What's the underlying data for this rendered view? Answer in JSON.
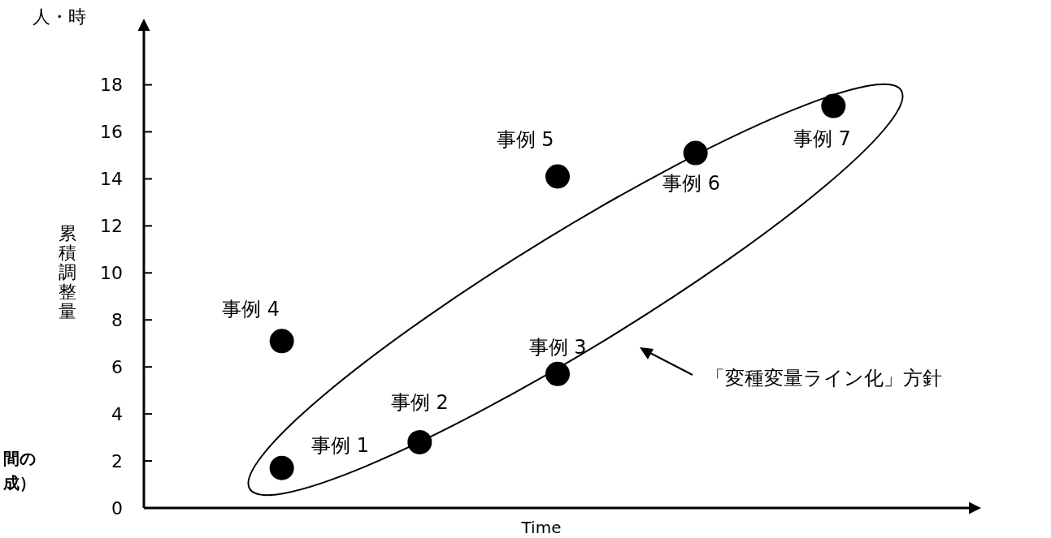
{
  "chart_data": {
    "type": "scatter",
    "xlabel": "Time",
    "ylabel": "累積調整量",
    "categories": [
      null,
      null,
      null,
      null,
      null
    ],
    "marker": "circle",
    "ylim": [
      0,
      20.4
    ],
    "yticks": [
      0,
      2,
      4,
      6,
      8,
      10,
      12,
      14,
      16,
      18
    ],
    "series": [
      {
        "name": "事例 1",
        "color": "#000000",
        "values": [
          1.7,
          null,
          null,
          null,
          null
        ]
      },
      {
        "name": "事例 2",
        "color": "#000000",
        "values": [
          null,
          2.8,
          null,
          null,
          null
        ]
      },
      {
        "name": "事例 3",
        "color": "#000000",
        "values": [
          null,
          null,
          5.7,
          null,
          null
        ]
      },
      {
        "name": "事例 4",
        "color": "#000000",
        "values": [
          7.1,
          null,
          null,
          null,
          null
        ]
      },
      {
        "name": "事例 5",
        "color": "#000000",
        "values": [
          null,
          null,
          14.1,
          null,
          null
        ]
      },
      {
        "name": "事例 6",
        "color": "#000000",
        "values": [
          null,
          null,
          null,
          15.1,
          null
        ]
      },
      {
        "name": "事例 7",
        "color": "#000000",
        "values": [
          null,
          null,
          null,
          null,
          17.1
        ]
      }
    ],
    "annotations": [
      "人・時",
      "「変種変量ライン化」方針",
      "間の",
      "成）"
    ]
  }
}
